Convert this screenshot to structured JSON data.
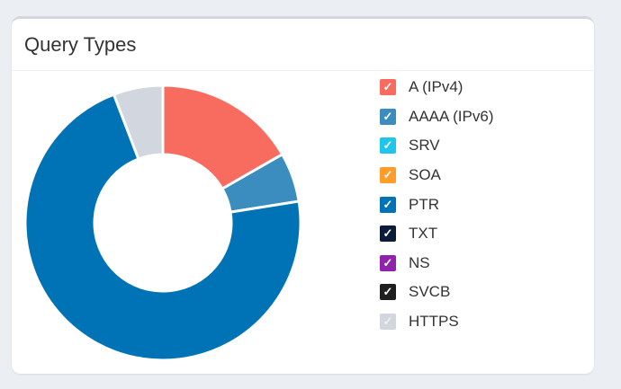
{
  "card": {
    "title": "Query Types"
  },
  "chart_data": {
    "type": "pie",
    "donut": true,
    "title": "Query Types",
    "legend_position": "right",
    "series": [
      {
        "name": "A (IPv4)",
        "value": 16.7,
        "color": "#f76c5e",
        "checked": true
      },
      {
        "name": "AAAA (IPv6)",
        "value": 5.8,
        "color": "#3a8dbe",
        "checked": true
      },
      {
        "name": "SRV",
        "value": 0,
        "color": "#1ec6ee",
        "checked": true
      },
      {
        "name": "SOA",
        "value": 0,
        "color": "#ff9c2a",
        "checked": true
      },
      {
        "name": "PTR",
        "value": 71.7,
        "color": "#0073b7",
        "checked": true
      },
      {
        "name": "TXT",
        "value": 0,
        "color": "#0d1b3b",
        "checked": true
      },
      {
        "name": "NS",
        "value": 0,
        "color": "#8e24aa",
        "checked": true
      },
      {
        "name": "SVCB",
        "value": 0,
        "color": "#1f1f1f",
        "checked": true
      },
      {
        "name": "HTTPS",
        "value": 5.8,
        "color": "#d2d6de",
        "checked": true
      }
    ]
  }
}
